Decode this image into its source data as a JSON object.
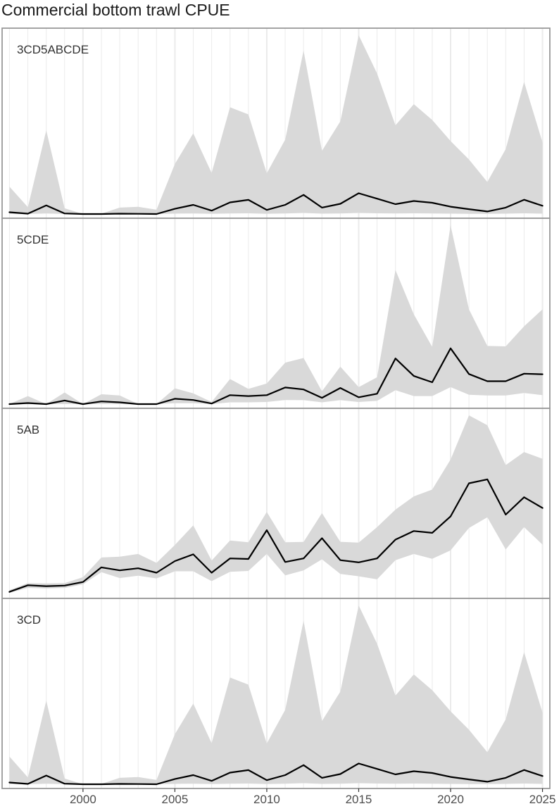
{
  "title": "Commercial bottom trawl CPUE",
  "colors": {
    "band": "#d9d9d9",
    "line": "#000000",
    "frame": "#999999",
    "grid": "#ebebeb",
    "background": "#ffffff"
  },
  "chart_data": {
    "type": "line",
    "title": "Commercial bottom trawl CPUE",
    "xlabel": "",
    "ylabel": "",
    "xlim": [
      1995.6,
      2025.4
    ],
    "x_ticks": [
      "2000",
      "2005",
      "2010",
      "2015",
      "2020",
      "2025"
    ],
    "grid": "vertical",
    "facets": "stacked vertically, independent y scales, no y tick labels",
    "years": [
      1996,
      1997,
      1998,
      1999,
      2000,
      2001,
      2002,
      2003,
      2004,
      2005,
      2006,
      2007,
      2008,
      2009,
      2010,
      2011,
      2012,
      2013,
      2014,
      2015,
      2016,
      2017,
      2018,
      2019,
      2020,
      2021,
      2022,
      2023,
      2024,
      2025
    ],
    "panels": [
      {
        "name": "3CD5ABCDE",
        "ylim": [
          0,
          100
        ],
        "value": [
          1.0,
          0.2,
          4.8,
          0.3,
          0.0,
          0.0,
          0.2,
          0.1,
          0.0,
          2.9,
          5.1,
          1.9,
          6.5,
          7.9,
          2.3,
          5.1,
          10.7,
          3.6,
          5.7,
          11.6,
          8.6,
          5.5,
          7.3,
          6.3,
          4.1,
          2.7,
          1.4,
          3.6,
          8.0,
          4.6
        ],
        "lower": [
          0.1,
          0.0,
          0.3,
          0.0,
          0.0,
          0.0,
          0.0,
          0.0,
          0.0,
          0.2,
          0.3,
          0.1,
          0.3,
          0.4,
          0.1,
          0.3,
          0.6,
          0.2,
          0.3,
          0.6,
          0.4,
          0.3,
          0.4,
          0.3,
          0.2,
          0.1,
          0.1,
          0.2,
          0.4,
          0.2
        ],
        "upper": [
          15.3,
          3.8,
          46.8,
          3.2,
          0.0,
          0.2,
          3.6,
          4.0,
          2.4,
          28.0,
          45.1,
          23.0,
          59.7,
          55.7,
          22.8,
          41.6,
          91.4,
          35.3,
          51.8,
          100.0,
          78.6,
          49.6,
          61.4,
          52.6,
          40.8,
          30.5,
          17.9,
          36.3,
          73.9,
          40.0
        ]
      },
      {
        "name": "5CDE",
        "ylim": [
          0,
          100
        ],
        "value": [
          0.0,
          0.6,
          0.0,
          2.0,
          0.0,
          1.5,
          1.0,
          0.0,
          0.0,
          3.0,
          2.3,
          0.3,
          5.0,
          4.5,
          5.0,
          9.3,
          8.2,
          3.5,
          9.0,
          3.8,
          5.8,
          25.5,
          15.7,
          12.2,
          31.2,
          16.8,
          12.8,
          12.8,
          17.0,
          16.7
        ],
        "lower": [
          0.0,
          0.0,
          0.0,
          0.0,
          0.0,
          0.0,
          0.0,
          0.0,
          0.0,
          0.5,
          0.5,
          0.0,
          1.0,
          1.0,
          1.2,
          2.3,
          2.2,
          1.0,
          2.2,
          1.2,
          1.8,
          7.8,
          4.5,
          4.5,
          9.5,
          5.2,
          4.8,
          4.8,
          6.2,
          5.0
        ],
        "upper": [
          0.0,
          4.5,
          0.0,
          6.5,
          0.0,
          5.5,
          4.8,
          0.0,
          0.0,
          8.8,
          6.0,
          1.2,
          14.0,
          8.5,
          11.5,
          23.2,
          25.8,
          7.2,
          21.0,
          9.5,
          15.0,
          75.0,
          50.2,
          32.0,
          100.0,
          53.0,
          32.5,
          32.3,
          43.5,
          53.0
        ]
      },
      {
        "name": "5AB",
        "ylim": [
          0,
          100
        ],
        "value": [
          1.3,
          5.0,
          4.5,
          4.8,
          6.8,
          15.0,
          13.3,
          14.5,
          12.0,
          18.5,
          22.3,
          12.0,
          20.0,
          19.7,
          35.8,
          18.0,
          20.0,
          31.3,
          19.0,
          17.8,
          20.0,
          30.5,
          35.3,
          34.3,
          43.5,
          62.0,
          64.2,
          44.5,
          54.2,
          48.2
        ],
        "lower": [
          0.8,
          3.5,
          3.2,
          3.5,
          5.5,
          12.3,
          9.0,
          10.3,
          8.8,
          12.8,
          12.8,
          7.3,
          12.5,
          13.0,
          22.5,
          10.5,
          13.3,
          19.5,
          11.3,
          10.0,
          8.3,
          19.0,
          22.5,
          19.8,
          24.5,
          37.0,
          43.0,
          25.0,
          37.5,
          27.7
        ],
        "upper": [
          2.2,
          6.2,
          6.0,
          6.2,
          9.5,
          20.5,
          21.0,
          22.5,
          17.5,
          27.5,
          38.5,
          18.8,
          30.0,
          29.0,
          46.0,
          29.0,
          29.2,
          45.3,
          29.3,
          28.8,
          37.5,
          47.3,
          54.7,
          58.5,
          75.3,
          100.0,
          94.5,
          72.2,
          79.5,
          75.7
        ]
      },
      {
        "name": "3CD",
        "ylim": [
          0,
          100
        ],
        "value": [
          1.0,
          0.2,
          4.9,
          0.3,
          0.0,
          0.0,
          0.2,
          0.1,
          0.0,
          2.9,
          5.1,
          1.9,
          6.5,
          7.9,
          2.3,
          5.1,
          10.7,
          3.6,
          5.7,
          11.6,
          8.6,
          5.5,
          7.3,
          6.3,
          4.1,
          2.7,
          1.4,
          3.6,
          8.0,
          4.6
        ],
        "lower": [
          0.1,
          0.0,
          0.3,
          0.0,
          0.0,
          0.0,
          0.0,
          0.0,
          0.0,
          0.2,
          0.3,
          0.1,
          0.3,
          0.4,
          0.1,
          0.3,
          0.6,
          0.2,
          0.3,
          0.6,
          0.4,
          0.3,
          0.4,
          0.3,
          0.2,
          0.1,
          0.1,
          0.2,
          0.4,
          0.2
        ],
        "upper": [
          15.5,
          3.8,
          46.8,
          3.2,
          0.0,
          0.2,
          3.6,
          4.0,
          2.4,
          28.0,
          45.1,
          23.0,
          59.7,
          55.7,
          22.8,
          41.6,
          91.4,
          35.3,
          51.8,
          100.0,
          78.6,
          49.6,
          61.4,
          52.6,
          40.8,
          30.5,
          17.9,
          36.3,
          73.9,
          40.0
        ]
      }
    ]
  }
}
